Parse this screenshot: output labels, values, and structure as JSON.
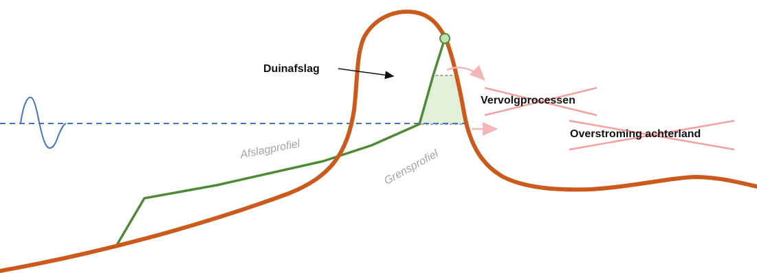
{
  "labels": {
    "dune_erosion": "Duinafslag",
    "follow_up_processes": "Vervolgprocessen",
    "hinterland_flooding": "Overstroming achterland",
    "erosion_profile": "Afslagprofiel",
    "limit_profile": "Grensprofiel"
  },
  "colors": {
    "dune_profile": "#cc5a1c",
    "erosion_profile": "#4e8a36",
    "water_level": "#4472c4",
    "wave": "#4472c4",
    "eroded_area_fill": "#e2efd9",
    "limit_profile_box": "#888888",
    "cross_out": "#f2a0a0",
    "arrow_faded": "#f4b6b6",
    "marker_fill": "#c5e0b4",
    "text": "#111111",
    "italic_text": "#a3a3a3"
  },
  "icons": [
    "wave-icon",
    "pointer-arrow-icon",
    "cross-out-icon",
    "faded-arrow-icon",
    "circle-marker-icon"
  ]
}
